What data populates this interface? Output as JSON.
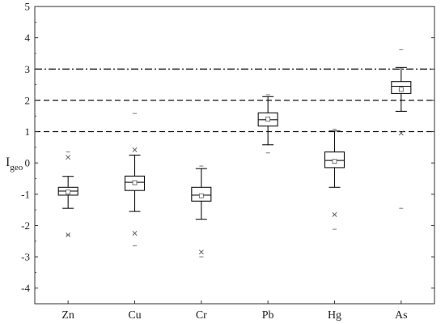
{
  "chart_data": {
    "type": "box",
    "ylabel": "I",
    "ylabel_subscript": "geo",
    "xlabel": "",
    "ylim": [
      -4.5,
      5
    ],
    "yticks": [
      5,
      4,
      3,
      2,
      1,
      0,
      -1,
      -2,
      -3,
      -4
    ],
    "grid": false,
    "reference_lines": [
      {
        "y": 3,
        "style": "dash-dot"
      },
      {
        "y": 2,
        "style": "dashed"
      },
      {
        "y": 1,
        "style": "dashed"
      }
    ],
    "categories": [
      "Zn",
      "Cu",
      "Cr",
      "Pb",
      "Hg",
      "As"
    ],
    "boxes": [
      {
        "name": "Zn",
        "whisker_low": -1.45,
        "q1": -1.03,
        "median": -0.9,
        "q3": -0.78,
        "whisker_high": -0.43,
        "mean": -0.93,
        "outliers_x": [
          0.18,
          -2.3
        ],
        "extremes": [
          0.35,
          -2.3
        ]
      },
      {
        "name": "Cu",
        "whisker_low": -1.55,
        "q1": -0.88,
        "median": -0.62,
        "q3": -0.42,
        "whisker_high": 0.25,
        "mean": -0.63,
        "outliers_x": [
          0.42,
          -2.25
        ],
        "extremes": [
          1.58,
          -2.65
        ]
      },
      {
        "name": "Cr",
        "whisker_low": -1.8,
        "q1": -1.22,
        "median": -1.03,
        "q3": -0.78,
        "whisker_high": -0.18,
        "mean": -1.05,
        "outliers_x": [
          -2.85
        ],
        "extremes": [
          -0.1,
          -3.0
        ]
      },
      {
        "name": "Pb",
        "whisker_low": 0.58,
        "q1": 1.18,
        "median": 1.38,
        "q3": 1.6,
        "whisker_high": 2.12,
        "mean": 1.4,
        "outliers_x": [],
        "extremes": [
          2.18,
          0.32
        ]
      },
      {
        "name": "Hg",
        "whisker_low": -0.78,
        "q1": -0.15,
        "median": 0.08,
        "q3": 0.35,
        "whisker_high": 1.02,
        "mean": 0.05,
        "outliers_x": [
          -1.65
        ],
        "extremes": [
          1.08,
          -2.12
        ]
      },
      {
        "name": "As",
        "whisker_low": 1.65,
        "q1": 2.22,
        "median": 2.45,
        "q3": 2.6,
        "whisker_high": 3.05,
        "mean": 2.35,
        "outliers_x": [
          0.95
        ],
        "extremes": [
          3.62,
          -1.45
        ]
      }
    ]
  }
}
